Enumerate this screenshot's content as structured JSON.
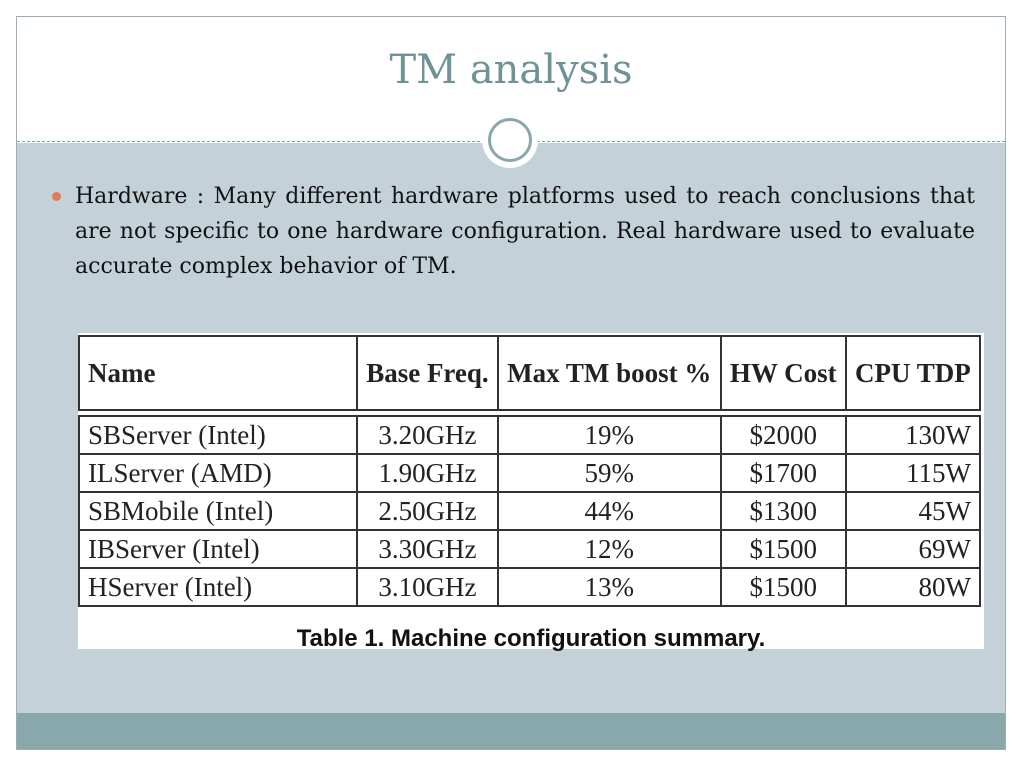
{
  "slide": {
    "title": "TM analysis",
    "bullet": "Hardware : Many different hardware platforms used to reach conclusions that are not specific to one hardware configuration. Real hardware used to evaluate accurate complex behavior of TM.",
    "colors": {
      "title": "#6f9297",
      "bullet": "#e07a5a",
      "background": "#c5d1d8",
      "footer": "#88a8ab"
    }
  },
  "table": {
    "headers": [
      "Name",
      "Base Freq.",
      "Max TM boost %",
      "HW Cost",
      "CPU TDP"
    ],
    "rows": [
      [
        "SBServer (Intel)",
        "3.20GHz",
        "19%",
        "$2000",
        "130W"
      ],
      [
        "ILServer (AMD)",
        "1.90GHz",
        "59%",
        "$1700",
        "115W"
      ],
      [
        "SBMobile (Intel)",
        "2.50GHz",
        "44%",
        "$1300",
        "45W"
      ],
      [
        "IBServer (Intel)",
        "3.30GHz",
        "12%",
        "$1500",
        "69W"
      ],
      [
        "HServer (Intel)",
        "3.10GHz",
        "13%",
        "$1500",
        "80W"
      ]
    ],
    "caption": "Table 1. Machine configuration summary."
  }
}
